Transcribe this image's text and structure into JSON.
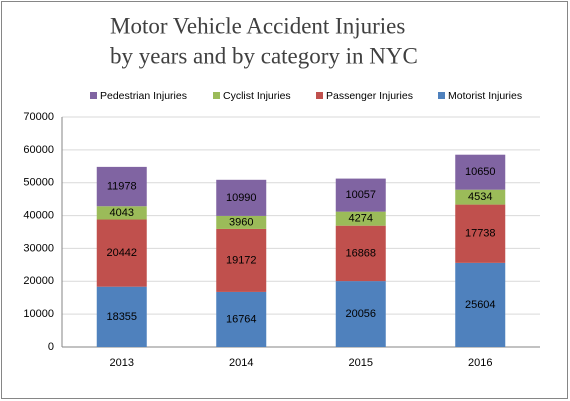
{
  "chart_data": {
    "type": "stacked_bar",
    "title": [
      "Motor Vehicle Accident Injuries",
      "by years and by category in NYC"
    ],
    "categories": [
      "2013",
      "2014",
      "2015",
      "2016"
    ],
    "series": [
      {
        "name": "Motorist Injuries",
        "color": "#4f81bd",
        "values": [
          18355,
          16764,
          20056,
          25604
        ]
      },
      {
        "name": "Passenger Injuries",
        "color": "#c0504d",
        "values": [
          20442,
          19172,
          16868,
          17738
        ]
      },
      {
        "name": "Cyclist Injuries",
        "color": "#9bbb59",
        "values": [
          4043,
          3960,
          4274,
          4534
        ]
      },
      {
        "name": "Pedestrian Injuries",
        "color": "#8064a2",
        "values": [
          11978,
          10990,
          10057,
          10650
        ]
      }
    ],
    "ylim": [
      0,
      70000
    ],
    "yticks": [
      0,
      10000,
      20000,
      30000,
      40000,
      50000,
      60000,
      70000
    ],
    "grid": true
  }
}
